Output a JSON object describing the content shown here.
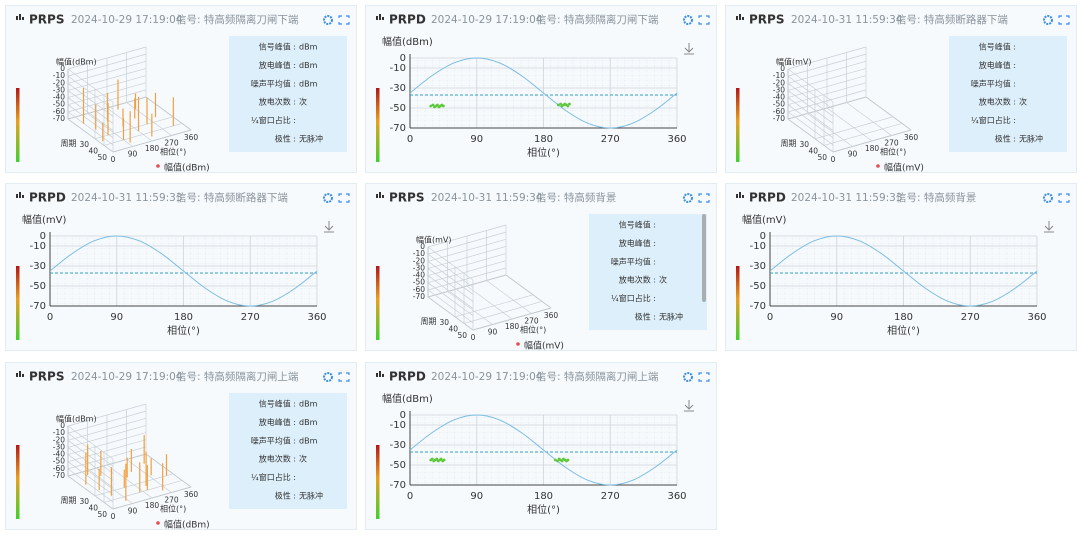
{
  "panels": [
    {
      "type": "prps",
      "title": "PRPS",
      "time": "2024-10-29 17:19:04",
      "signal": "信号: 特高频隔离刀闸下端",
      "chart": {
        "ylabel": "幅值(dBm)",
        "ylim": [
          -70,
          0
        ],
        "yticks": [
          0,
          -10,
          -20,
          -30,
          -40,
          -50,
          -60,
          -70
        ],
        "zlabel": "周期",
        "zlim": [
          0,
          50
        ],
        "zticks": [
          30,
          40,
          50
        ],
        "xlabel": "相位(°)",
        "xlim": [
          0,
          360
        ],
        "xticks": [
          0,
          90,
          180,
          270,
          360
        ],
        "bars": {
          "color": "#f0a040",
          "x": [
            30,
            45,
            60,
            90,
            120,
            150,
            180,
            200,
            210,
            225,
            240,
            270,
            300,
            320,
            15,
            100
          ],
          "period": [
            10,
            20,
            30,
            40,
            15,
            25,
            35,
            45,
            5,
            20,
            30,
            10,
            25,
            40,
            35,
            45
          ],
          "values": [
            -20,
            -35,
            -25,
            -40,
            -30,
            -45,
            -22,
            -38,
            -28,
            -42,
            -33,
            -48,
            -36,
            -30,
            -44,
            -26
          ]
        }
      },
      "info": [
        {
          "label": "信号峰值 :",
          "value": "dBm"
        },
        {
          "label": "放电峰值 :",
          "value": "dBm"
        },
        {
          "label": "噪声平均值 :",
          "value": "dBm"
        },
        {
          "label": "放电次数 :",
          "value": "次"
        },
        {
          "label": "¼窗口占比 :"
        },
        {
          "label": "极性 :",
          "value": "无脉冲"
        }
      ],
      "legend": "幅值(dBm)"
    },
    {
      "type": "prpd",
      "title": "PRPD",
      "time": "2024-10-29 17:19:04",
      "signal": "信号: 特高频隔离刀闸下端",
      "chart": {
        "ylabel": "幅值(dBm)",
        "ylim": [
          -70,
          0
        ],
        "yticks": [
          0,
          -10,
          -30,
          -50,
          -70
        ],
        "xlabel": "相位(°)",
        "xlim": [
          0,
          360
        ],
        "xticks": [
          0,
          90,
          180,
          270,
          360
        ],
        "reference": {
          "color": "#7cbce2",
          "x": [
            0,
            30,
            60,
            90,
            120,
            150,
            180,
            210,
            240,
            270,
            300,
            330,
            360
          ],
          "values": [
            -35,
            -17.5,
            -4.69,
            0,
            -4.69,
            -17.5,
            -35,
            -52.5,
            -65.31,
            -70,
            -65.31,
            -52.5,
            -35
          ]
        },
        "threshold": {
          "color": "#3aa2c8",
          "value": -37
        },
        "points": {
          "color": "#5cc83a",
          "x": [
            28,
            31,
            33,
            35,
            37,
            39,
            41,
            43,
            45,
            200,
            203,
            205,
            207,
            209,
            211,
            213,
            215
          ],
          "values": [
            -48,
            -47,
            -49,
            -48,
            -47,
            -49,
            -48,
            -47,
            -48,
            -47,
            -46,
            -48,
            -47,
            -46,
            -47,
            -48,
            -46
          ]
        }
      }
    },
    {
      "type": "prps",
      "title": "PRPS",
      "time": "2024-10-31 11:59:34",
      "signal": "信号: 特高频断路器下端",
      "chart": {
        "ylabel": "幅值(mV)",
        "ylim": [
          -70,
          0
        ],
        "yticks": [
          0,
          -10,
          -20,
          -30,
          -40,
          -50,
          -60,
          -70
        ],
        "zlabel": "周期",
        "zlim": [
          0,
          50
        ],
        "zticks": [
          30,
          40,
          50
        ],
        "xlabel": "相位(°)",
        "xlim": [
          0,
          360
        ],
        "xticks": [
          0,
          90,
          180,
          270,
          360
        ]
      },
      "info": [
        {
          "label": "信号峰值 :"
        },
        {
          "label": "放电峰值 :"
        },
        {
          "label": "噪声平均值 :"
        },
        {
          "label": "放电次数 :",
          "value": "次"
        },
        {
          "label": "¼窗口占比 :"
        },
        {
          "label": "极性 :",
          "value": "无脉冲"
        }
      ],
      "legend": "幅值(mV)"
    },
    {
      "type": "prpd",
      "title": "PRPD",
      "time": "2024-10-31 11:59:33",
      "signal": "信号: 特高频断路器下端",
      "chart": {
        "ylabel": "幅值(mV)",
        "ylim": [
          -70,
          0
        ],
        "yticks": [
          0,
          -10,
          -30,
          -50,
          -70
        ],
        "xlabel": "相位(°)",
        "xlim": [
          0,
          360
        ],
        "xticks": [
          0,
          90,
          180,
          270,
          360
        ],
        "reference": {
          "color": "#7cbce2",
          "x": [
            0,
            30,
            60,
            90,
            120,
            150,
            180,
            210,
            240,
            270,
            300,
            330,
            360
          ],
          "values": [
            -35,
            -17.5,
            -4.69,
            0,
            -4.69,
            -17.5,
            -35,
            -52.5,
            -65.31,
            -70,
            -65.31,
            -52.5,
            -35
          ]
        },
        "threshold": {
          "color": "#3aa2c8",
          "value": -37
        }
      }
    },
    {
      "type": "prps",
      "title": "PRPS",
      "time": "2024-10-31 11:59:34",
      "signal": "信号: 特高频背景",
      "chart": {
        "ylabel": "幅值(mV)",
        "ylim": [
          -70,
          0
        ],
        "yticks": [
          0,
          -10,
          -20,
          -30,
          -40,
          -50,
          -60,
          -70
        ],
        "zlabel": "周期",
        "zlim": [
          0,
          50
        ],
        "zticks": [
          30,
          40,
          50
        ],
        "xlabel": "相位(°)",
        "xlim": [
          0,
          360
        ],
        "xticks": [
          0,
          90,
          180,
          270,
          360
        ]
      },
      "info": [
        {
          "label": "信号峰值 :"
        },
        {
          "label": "放电峰值 :"
        },
        {
          "label": "噪声平均值 :"
        },
        {
          "label": "放电次数 :",
          "value": "次"
        },
        {
          "label": "¼窗口占比 :"
        },
        {
          "label": "极性 :",
          "value": "无脉冲"
        }
      ],
      "legend": "幅值(mV)"
    },
    {
      "type": "prpd",
      "title": "PRPD",
      "time": "2024-10-31 11:59:33",
      "signal": "信号: 特高频背景",
      "chart": {
        "ylabel": "幅值(mV)",
        "ylim": [
          -70,
          0
        ],
        "yticks": [
          0,
          -10,
          -30,
          -50,
          -70
        ],
        "xlabel": "相位(°)",
        "xlim": [
          0,
          360
        ],
        "xticks": [
          0,
          90,
          180,
          270,
          360
        ],
        "reference": {
          "color": "#7cbce2",
          "x": [
            0,
            30,
            60,
            90,
            120,
            150,
            180,
            210,
            240,
            270,
            300,
            330,
            360
          ],
          "values": [
            -35,
            -17.5,
            -4.69,
            0,
            -4.69,
            -17.5,
            -35,
            -52.5,
            -65.31,
            -70,
            -65.31,
            -52.5,
            -35
          ]
        },
        "threshold": {
          "color": "#3aa2c8",
          "value": -37
        }
      }
    },
    {
      "type": "prps",
      "title": "PRPS",
      "time": "2024-10-29 17:19:04",
      "signal": "信号: 特高频隔离刀闸上端",
      "chart": {
        "ylabel": "幅值(dBm)",
        "ylim": [
          -70,
          0
        ],
        "yticks": [
          0,
          -10,
          -20,
          -30,
          -40,
          -50,
          -60,
          -70
        ],
        "zlabel": "周期",
        "zlim": [
          0,
          50
        ],
        "zticks": [
          30,
          40,
          50
        ],
        "xlabel": "相位(°)",
        "xlim": [
          0,
          360
        ],
        "xticks": [
          0,
          90,
          180,
          270,
          360
        ],
        "bars": {
          "color": "#f0a040",
          "x": [
            20,
            40,
            55,
            80,
            110,
            135,
            165,
            190,
            215,
            230,
            250,
            280,
            310,
            330,
            70,
            200
          ],
          "period": [
            15,
            25,
            35,
            45,
            10,
            30,
            40,
            20,
            35,
            15,
            45,
            25,
            10,
            30,
            5,
            40
          ],
          "values": [
            -25,
            -40,
            -30,
            -18,
            -35,
            -45,
            -28,
            -42,
            -22,
            -38,
            -32,
            -46,
            -30,
            -40,
            -27,
            -35
          ]
        }
      },
      "info": [
        {
          "label": "信号峰值 :",
          "value": "dBm"
        },
        {
          "label": "放电峰值 :",
          "value": "dBm"
        },
        {
          "label": "噪声平均值 :",
          "value": "dBm"
        },
        {
          "label": "放电次数 :",
          "value": "次"
        },
        {
          "label": "¼窗口占比 :"
        },
        {
          "label": "极性 :",
          "value": "无脉冲"
        }
      ],
      "legend": "幅值(dBm)"
    },
    {
      "type": "prpd",
      "title": "PRPD",
      "time": "2024-10-29 17:19:04",
      "signal": "信号: 特高频隔离刀闸上端",
      "chart": {
        "ylabel": "幅值(dBm)",
        "ylim": [
          -70,
          0
        ],
        "yticks": [
          0,
          -10,
          -30,
          -50,
          -70
        ],
        "xlabel": "相位(°)",
        "xlim": [
          0,
          360
        ],
        "xticks": [
          0,
          90,
          180,
          270,
          360
        ],
        "reference": {
          "color": "#7cbce2",
          "x": [
            0,
            30,
            60,
            90,
            120,
            150,
            180,
            210,
            240,
            270,
            300,
            330,
            360
          ],
          "values": [
            -35,
            -17.5,
            -4.69,
            0,
            -4.69,
            -17.5,
            -35,
            -52.5,
            -65.31,
            -70,
            -65.31,
            -52.5,
            -35
          ]
        },
        "threshold": {
          "color": "#3aa2c8",
          "value": -37
        },
        "points": {
          "color": "#5cc83a",
          "x": [
            28,
            30,
            32,
            34,
            36,
            38,
            40,
            42,
            44,
            46,
            196,
            199,
            201,
            203,
            205,
            207,
            209,
            211,
            213
          ],
          "values": [
            -45,
            -44,
            -46,
            -45,
            -44,
            -46,
            -45,
            -44,
            -46,
            -45,
            -45,
            -46,
            -44,
            -45,
            -46,
            -44,
            -45,
            -46,
            -45
          ]
        }
      }
    }
  ]
}
